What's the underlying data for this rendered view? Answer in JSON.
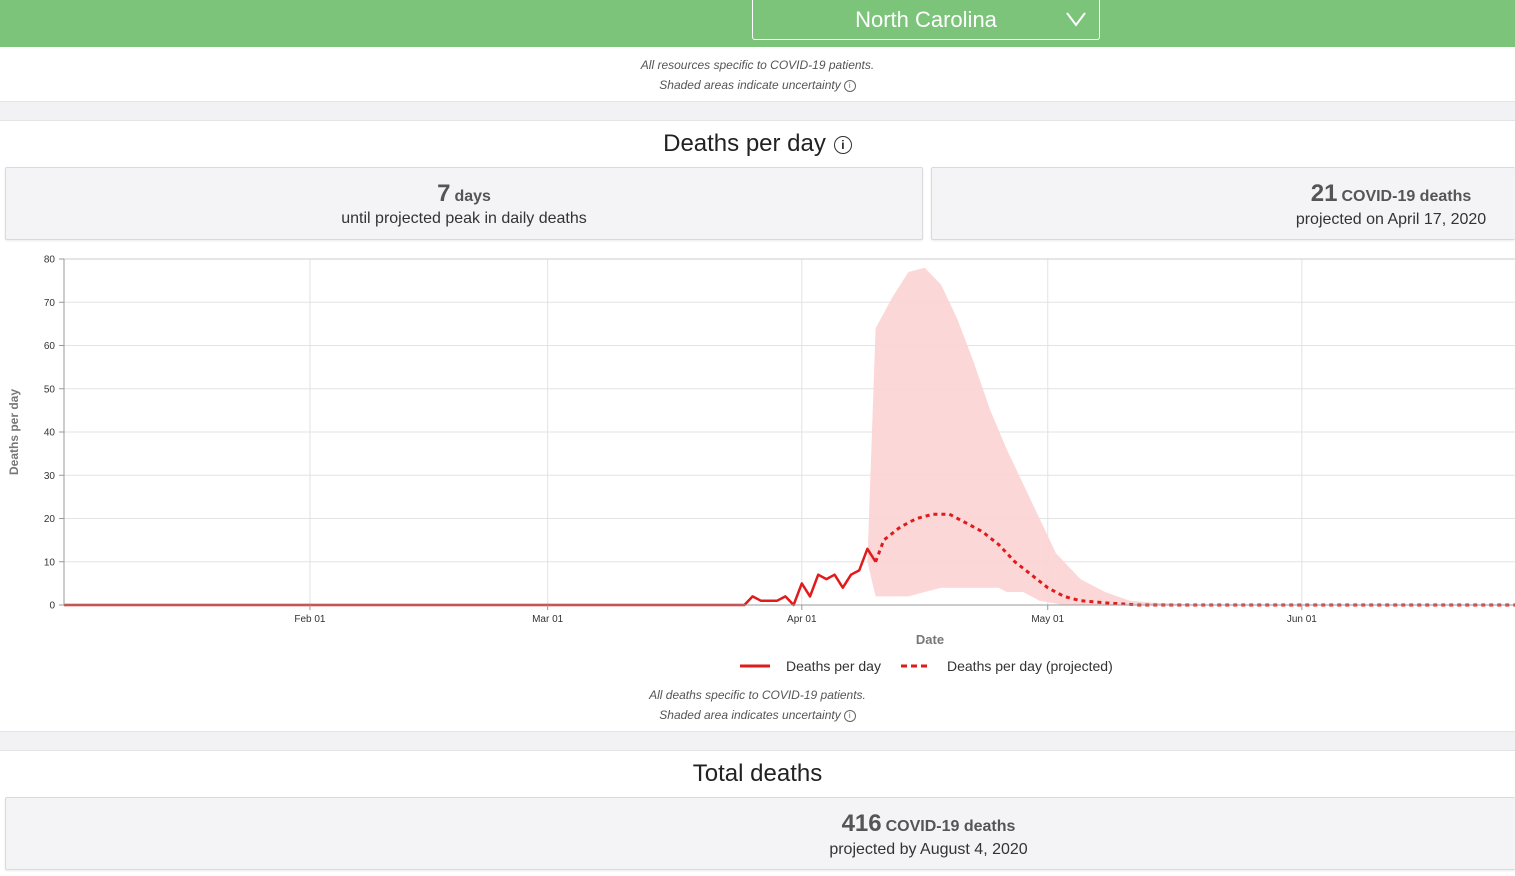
{
  "header": {
    "state_selected": "North Carolina",
    "chevron_icon": "chevron-down-icon"
  },
  "notes": {
    "resources_line1": "All resources specific to COVID-19 patients.",
    "resources_line2": "Shaded areas indicate uncertainty"
  },
  "deaths_per_day": {
    "title": "Deaths per day",
    "peak_days_value": "7",
    "peak_days_unit": "days",
    "peak_days_caption": "until projected peak in daily deaths",
    "peak_deaths_value": "21",
    "peak_deaths_unit": "COVID-19 deaths",
    "peak_deaths_caption": "projected on April 17, 2020",
    "footnote1": "All deaths specific to COVID-19 patients.",
    "footnote2": "Shaded area indicates uncertainty"
  },
  "total_deaths": {
    "title": "Total deaths",
    "value": "416",
    "unit": "COVID-19 deaths",
    "caption": "projected by August 4, 2020"
  },
  "colors": {
    "topbar": "#7bc47a",
    "series": "#e01b1b",
    "uncertainty": "#fcd3d3"
  },
  "chart_data": {
    "type": "line",
    "xlabel": "Date",
    "ylabel": "Deaths per day",
    "x_ticks": [
      "Feb 01",
      "Mar 01",
      "Apr 01",
      "May 01",
      "Jun 01"
    ],
    "y_ticks": [
      0,
      10,
      20,
      30,
      40,
      50,
      60,
      70,
      80
    ],
    "xlim": [
      "2020-01-02",
      "2020-06-27"
    ],
    "ylim": [
      0,
      80
    ],
    "grid": true,
    "legend_position": "bottom",
    "series": [
      {
        "name": "Deaths per day",
        "style": "solid",
        "points": [
          [
            "2020-01-02",
            0
          ],
          [
            "2020-03-25",
            0
          ],
          [
            "2020-03-26",
            2
          ],
          [
            "2020-03-27",
            1
          ],
          [
            "2020-03-28",
            1
          ],
          [
            "2020-03-29",
            1
          ],
          [
            "2020-03-30",
            2
          ],
          [
            "2020-03-31",
            0
          ],
          [
            "2020-04-01",
            5
          ],
          [
            "2020-04-02",
            2
          ],
          [
            "2020-04-03",
            7
          ],
          [
            "2020-04-04",
            6
          ],
          [
            "2020-04-05",
            7
          ],
          [
            "2020-04-06",
            4
          ],
          [
            "2020-04-07",
            7
          ],
          [
            "2020-04-08",
            8
          ],
          [
            "2020-04-09",
            13
          ],
          [
            "2020-04-10",
            10
          ]
        ]
      },
      {
        "name": "Deaths per day (projected)",
        "style": "dashed",
        "points": [
          [
            "2020-04-10",
            10
          ],
          [
            "2020-04-11",
            15
          ],
          [
            "2020-04-13",
            18
          ],
          [
            "2020-04-15",
            20
          ],
          [
            "2020-04-17",
            21
          ],
          [
            "2020-04-19",
            21
          ],
          [
            "2020-04-21",
            19
          ],
          [
            "2020-04-23",
            17
          ],
          [
            "2020-04-25",
            14
          ],
          [
            "2020-04-27",
            10
          ],
          [
            "2020-04-29",
            7
          ],
          [
            "2020-05-01",
            4
          ],
          [
            "2020-05-03",
            2
          ],
          [
            "2020-05-05",
            1
          ],
          [
            "2020-05-08",
            0.5
          ],
          [
            "2020-05-12",
            0
          ],
          [
            "2020-06-27",
            0
          ]
        ]
      }
    ],
    "uncertainty": {
      "name": "Uncertainty",
      "upper": [
        [
          "2020-04-09",
          10
        ],
        [
          "2020-04-10",
          64
        ],
        [
          "2020-04-12",
          71
        ],
        [
          "2020-04-14",
          77
        ],
        [
          "2020-04-16",
          78
        ],
        [
          "2020-04-18",
          74
        ],
        [
          "2020-04-20",
          66
        ],
        [
          "2020-04-22",
          56
        ],
        [
          "2020-04-24",
          45
        ],
        [
          "2020-04-26",
          36
        ],
        [
          "2020-04-28",
          28
        ],
        [
          "2020-04-30",
          20
        ],
        [
          "2020-05-02",
          12
        ],
        [
          "2020-05-05",
          6
        ],
        [
          "2020-05-08",
          3
        ],
        [
          "2020-05-11",
          1
        ],
        [
          "2020-05-14",
          0.5
        ],
        [
          "2020-05-20",
          0
        ]
      ],
      "lower": [
        [
          "2020-04-09",
          10
        ],
        [
          "2020-04-10",
          2
        ],
        [
          "2020-04-14",
          2
        ],
        [
          "2020-04-16",
          3
        ],
        [
          "2020-04-18",
          4
        ],
        [
          "2020-04-25",
          4
        ],
        [
          "2020-04-26",
          3
        ],
        [
          "2020-04-28",
          3
        ],
        [
          "2020-04-30",
          1
        ],
        [
          "2020-05-03",
          0
        ],
        [
          "2020-05-20",
          0
        ]
      ]
    }
  }
}
